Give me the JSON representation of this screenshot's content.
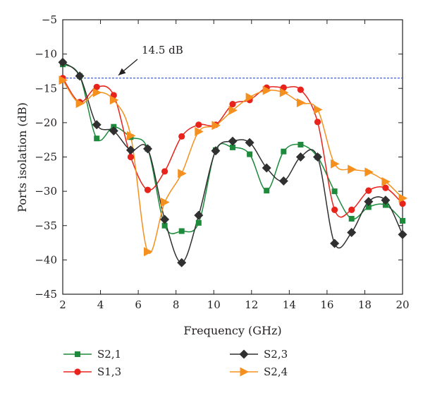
{
  "chart_data": {
    "type": "line",
    "title": "",
    "xlabel": "Frequency (GHz)",
    "ylabel": "Ports isolation (dB)",
    "xlim": [
      2,
      20
    ],
    "ylim": [
      -45,
      -5
    ],
    "xticks": [
      2,
      4,
      6,
      8,
      10,
      12,
      14,
      16,
      18,
      20
    ],
    "yticks": [
      -5,
      -10,
      -15,
      -20,
      -25,
      -30,
      -35,
      -40,
      -45
    ],
    "grid": false,
    "legend_position": "bottom",
    "annotation": {
      "text": "14.5 dB",
      "value": -13.5,
      "color": "#2f4fd6"
    },
    "series": [
      {
        "name": "S2,1",
        "color": "#1e8a3c",
        "marker": "square",
        "x": [
          2.0,
          2.9,
          3.8,
          4.7,
          5.6,
          6.5,
          7.4,
          8.3,
          9.2,
          10.1,
          11.0,
          11.9,
          12.8,
          13.7,
          14.6,
          15.5,
          16.4,
          17.3,
          18.2,
          19.1,
          20.0
        ],
        "values": [
          -11.5,
          -13.2,
          -22.3,
          -20.6,
          -22.1,
          -23.8,
          -35.0,
          -35.8,
          -34.6,
          -24.0,
          -23.6,
          -24.6,
          -29.9,
          -24.2,
          -23.2,
          -25.0,
          -30.0,
          -34.0,
          -32.3,
          -32.0,
          -34.3
        ]
      },
      {
        "name": "S1,3",
        "color": "#e8231c",
        "marker": "circle",
        "x": [
          2.0,
          2.9,
          3.8,
          4.7,
          5.6,
          6.5,
          7.4,
          8.3,
          9.2,
          10.1,
          11.0,
          11.9,
          12.8,
          13.7,
          14.6,
          15.5,
          16.4,
          17.3,
          18.2,
          19.1,
          20.0
        ],
        "values": [
          -13.5,
          -17.0,
          -14.8,
          -16.0,
          -25.0,
          -29.8,
          -27.1,
          -22.0,
          -20.3,
          -20.3,
          -17.3,
          -16.7,
          -14.9,
          -14.9,
          -15.2,
          -19.9,
          -32.7,
          -32.7,
          -29.9,
          -29.5,
          -31.8
        ]
      },
      {
        "name": "S2,3",
        "color": "#303030",
        "marker": "diamond",
        "x": [
          2.0,
          2.9,
          3.8,
          4.7,
          5.6,
          6.5,
          7.4,
          8.3,
          9.2,
          10.1,
          11.0,
          11.9,
          12.8,
          13.7,
          14.6,
          15.5,
          16.4,
          17.3,
          18.2,
          19.1,
          20.0
        ],
        "values": [
          -11.2,
          -13.2,
          -20.3,
          -21.2,
          -24.0,
          -23.8,
          -34.1,
          -40.4,
          -33.5,
          -24.1,
          -22.7,
          -22.9,
          -26.6,
          -28.5,
          -25.0,
          -25.0,
          -37.6,
          -36.0,
          -31.5,
          -31.3,
          -36.3
        ]
      },
      {
        "name": "S2,4",
        "color": "#f5901e",
        "marker": "triangle-right",
        "x": [
          2.0,
          2.9,
          3.8,
          4.7,
          5.6,
          6.5,
          7.4,
          8.3,
          9.2,
          10.1,
          11.0,
          11.9,
          12.8,
          13.7,
          14.6,
          15.5,
          16.4,
          17.3,
          18.2,
          19.1,
          20.0
        ],
        "values": [
          -13.8,
          -17.2,
          -15.6,
          -16.7,
          -21.9,
          -38.8,
          -31.6,
          -27.4,
          -21.3,
          -20.4,
          -18.2,
          -16.3,
          -15.3,
          -15.6,
          -17.1,
          -18.1,
          -26.0,
          -26.8,
          -27.2,
          -28.6,
          -31.0
        ]
      }
    ]
  }
}
